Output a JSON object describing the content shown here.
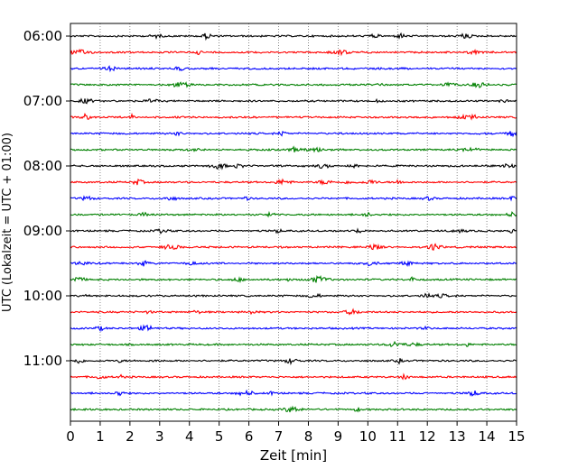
{
  "chart_data": {
    "type": "line",
    "chart_kind": "helicorder (seismogram drum plot)",
    "title": "",
    "xlabel": "Zeit  [min]",
    "ylabel": "UTC (Lokalzeit = UTC + 01:00)",
    "xlim": [
      0,
      15
    ],
    "x_ticks": [
      "0",
      "1",
      "2",
      "3",
      "4",
      "5",
      "6",
      "7",
      "8",
      "9",
      "10",
      "11",
      "12",
      "13",
      "14",
      "15"
    ],
    "y_ticks": [
      "06:00",
      "07:00",
      "08:00",
      "09:00",
      "10:00",
      "11:00"
    ],
    "grid": "vertical dotted lines at each minute",
    "legend": "none",
    "trace_interval_minutes": 15,
    "trace_color_cycle": [
      "#000000",
      "#ff0000",
      "#0000ff",
      "#008000"
    ],
    "traces": [
      {
        "start": "06:00",
        "color": "#000000"
      },
      {
        "start": "06:15",
        "color": "#ff0000"
      },
      {
        "start": "06:30",
        "color": "#0000ff"
      },
      {
        "start": "06:45",
        "color": "#008000"
      },
      {
        "start": "07:00",
        "color": "#000000"
      },
      {
        "start": "07:15",
        "color": "#ff0000"
      },
      {
        "start": "07:30",
        "color": "#0000ff"
      },
      {
        "start": "07:45",
        "color": "#008000"
      },
      {
        "start": "08:00",
        "color": "#000000"
      },
      {
        "start": "08:15",
        "color": "#ff0000"
      },
      {
        "start": "08:30",
        "color": "#0000ff"
      },
      {
        "start": "08:45",
        "color": "#008000"
      },
      {
        "start": "09:00",
        "color": "#000000"
      },
      {
        "start": "09:15",
        "color": "#ff0000"
      },
      {
        "start": "09:30",
        "color": "#0000ff"
      },
      {
        "start": "09:45",
        "color": "#008000"
      },
      {
        "start": "10:00",
        "color": "#000000"
      },
      {
        "start": "10:15",
        "color": "#ff0000"
      },
      {
        "start": "10:30",
        "color": "#0000ff"
      },
      {
        "start": "10:45",
        "color": "#008000"
      },
      {
        "start": "11:00",
        "color": "#000000"
      },
      {
        "start": "11:15",
        "color": "#ff0000"
      },
      {
        "start": "11:30",
        "color": "#0000ff"
      },
      {
        "start": "11:45",
        "color": "#008000"
      }
    ]
  }
}
